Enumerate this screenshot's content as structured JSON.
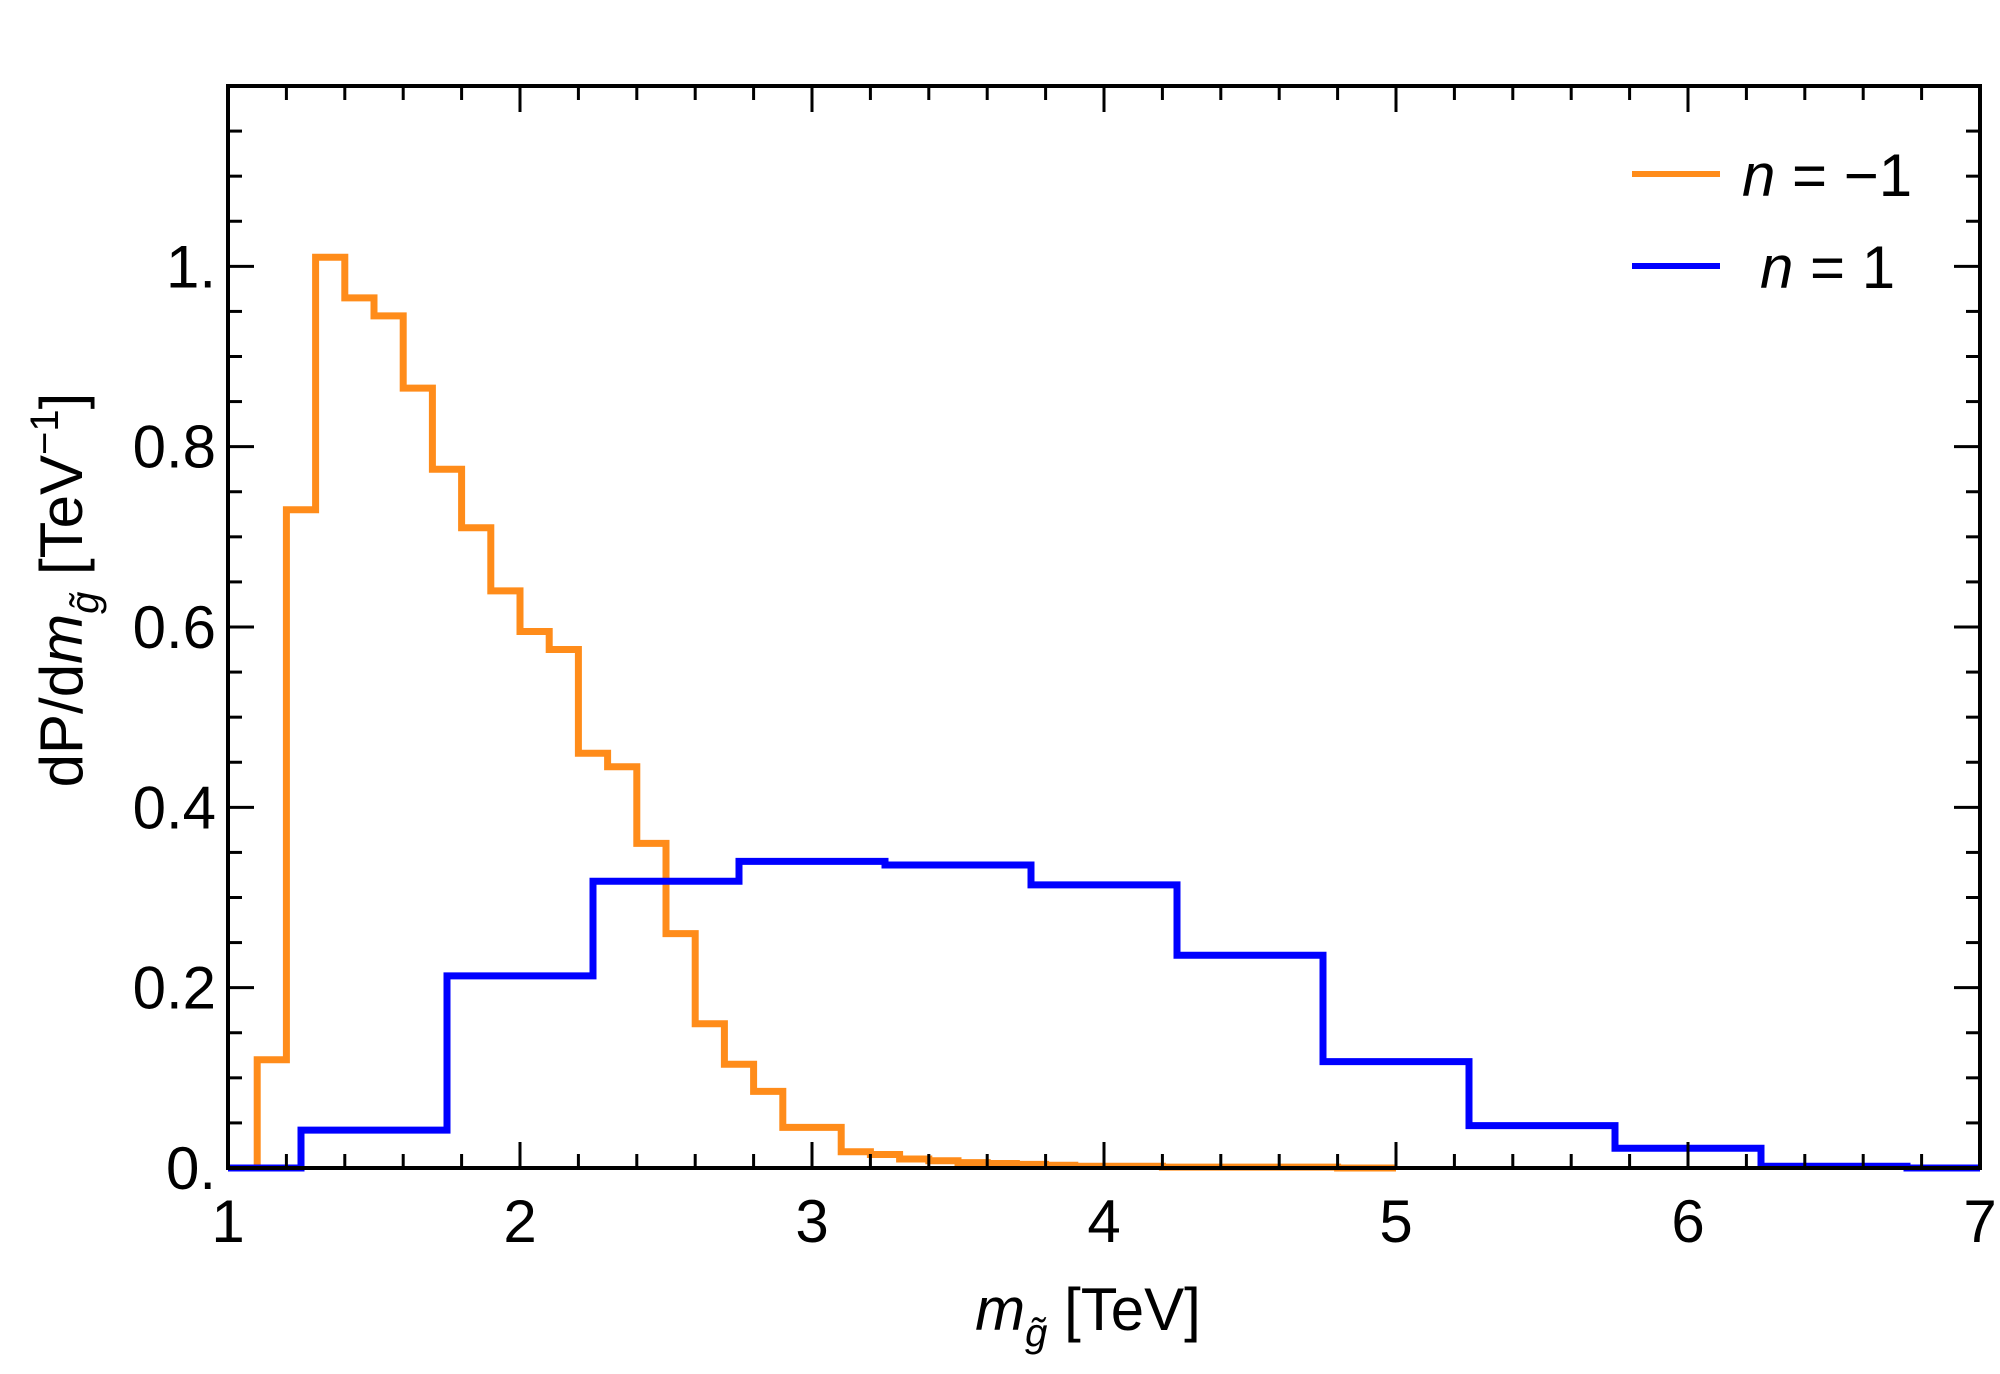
{
  "chart_data": {
    "type": "step-histogram",
    "xlabel": {
      "symbol": "m",
      "subscript": "g̃",
      "unit": " [TeV]"
    },
    "ylabel": {
      "prefix": "dP/d",
      "symbol": "m",
      "subscript": "g̃",
      "unit": " [TeV",
      "sup": "−1",
      "close": "]"
    },
    "xlim": [
      1,
      7
    ],
    "ylim": [
      0,
      1.2
    ],
    "x_ticks": [
      "1",
      "2",
      "3",
      "4",
      "5",
      "6",
      "7"
    ],
    "y_ticks": [
      "0.",
      "0.2",
      "0.4",
      "0.6",
      "0.8",
      "1."
    ],
    "y_tick_values": [
      0,
      0.2,
      0.4,
      0.6,
      0.8,
      1.0
    ],
    "legend": [
      {
        "var": "n",
        "eq": " = −1",
        "color": "#FF8C1A"
      },
      {
        "var": "n",
        "eq": " = 1",
        "color": "#0000FF"
      }
    ],
    "series": [
      {
        "name": "n = −1",
        "color": "#FF8C1A",
        "edges": [
          1.0,
          1.1,
          1.2,
          1.3,
          1.4,
          1.5,
          1.6,
          1.7,
          1.8,
          1.9,
          2.0,
          2.1,
          2.2,
          2.3,
          2.4,
          2.5,
          2.6,
          2.7,
          2.8,
          2.9,
          3.0,
          3.1,
          3.2,
          3.3,
          3.4,
          3.5,
          3.6,
          3.7,
          3.8,
          3.9,
          4.0,
          4.1,
          4.2,
          4.3,
          4.4,
          4.5,
          4.6,
          4.7,
          4.8,
          4.9,
          5.0
        ],
        "values": [
          0.0,
          0.12,
          0.73,
          1.01,
          0.965,
          0.945,
          0.865,
          0.775,
          0.71,
          0.64,
          0.595,
          0.575,
          0.46,
          0.445,
          0.36,
          0.26,
          0.16,
          0.115,
          0.085,
          0.045,
          0.045,
          0.018,
          0.015,
          0.01,
          0.008,
          0.006,
          0.005,
          0.004,
          0.003,
          0.002,
          0.002,
          0.002,
          0.001,
          0.001,
          0.001,
          0.001,
          0.001,
          0.001,
          0.0,
          0.0
        ]
      },
      {
        "name": "n = 1",
        "color": "#0000FF",
        "edges": [
          1.0,
          1.25,
          1.75,
          2.25,
          2.75,
          3.25,
          3.75,
          4.25,
          4.75,
          5.25,
          5.75,
          6.25,
          6.75,
          7.0
        ],
        "values": [
          0.0,
          0.042,
          0.213,
          0.318,
          0.34,
          0.336,
          0.314,
          0.236,
          0.118,
          0.047,
          0.022,
          0.002,
          0.0
        ]
      }
    ]
  }
}
